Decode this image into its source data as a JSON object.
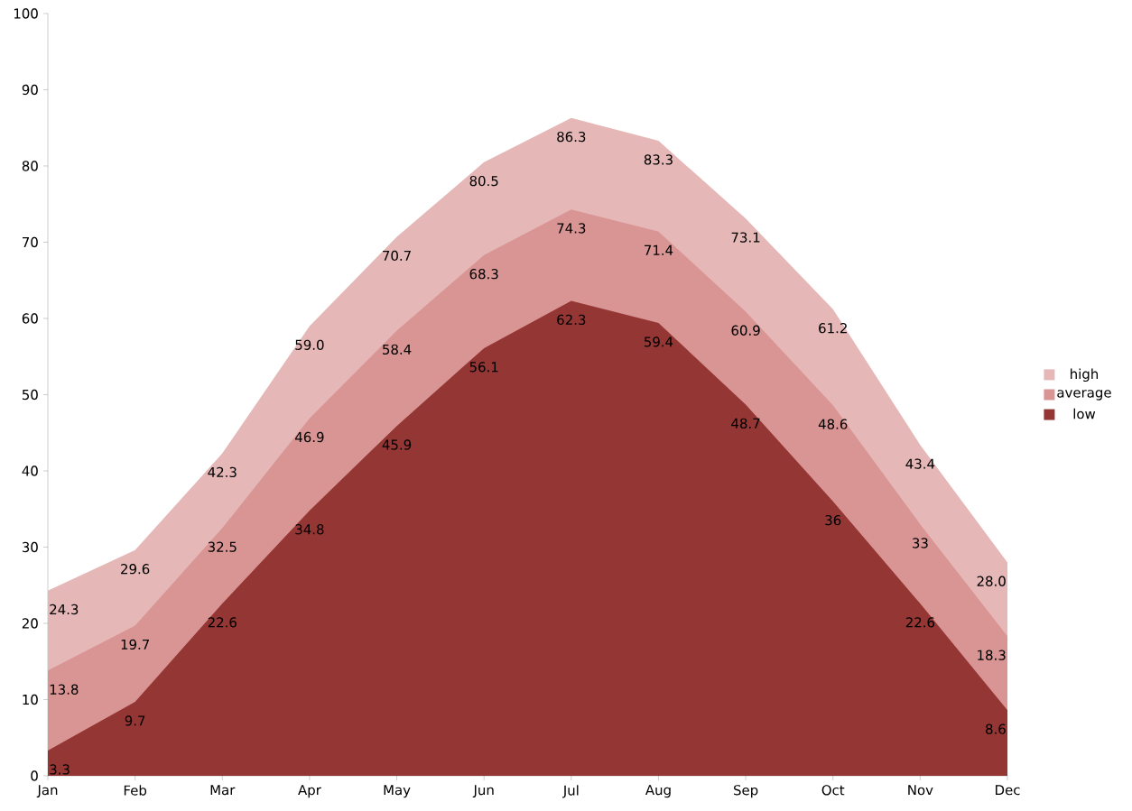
{
  "chart_data": {
    "type": "area",
    "categories": [
      "Jan",
      "Feb",
      "Mar",
      "Apr",
      "May",
      "Jun",
      "Jul",
      "Aug",
      "Sep",
      "Oct",
      "Nov",
      "Dec"
    ],
    "series": [
      {
        "name": "high",
        "color": "#e5b8b7",
        "values": [
          24.3,
          29.6,
          42.3,
          59.0,
          70.7,
          80.5,
          86.3,
          83.3,
          73.1,
          61.2,
          43.4,
          28.0
        ],
        "value_labels": [
          "24.3",
          "29.6",
          "42.3",
          "59.0",
          "70.7",
          "80.5",
          "86.3",
          "83.3",
          "73.1",
          "61.2",
          "43.4",
          "28.0"
        ]
      },
      {
        "name": "average",
        "color": "#d99594",
        "values": [
          13.8,
          19.7,
          32.5,
          46.9,
          58.4,
          68.3,
          74.3,
          71.4,
          60.9,
          48.6,
          33,
          18.3
        ],
        "value_labels": [
          "13.8",
          "19.7",
          "32.5",
          "46.9",
          "58.4",
          "68.3",
          "74.3",
          "71.4",
          "60.9",
          "48.6",
          "33",
          "18.3"
        ]
      },
      {
        "name": "low",
        "color": "#943634",
        "values": [
          3.3,
          9.7,
          22.6,
          34.8,
          45.9,
          56.1,
          62.3,
          59.4,
          48.7,
          36,
          22.6,
          8.6
        ],
        "value_labels": [
          "3.3",
          "9.7",
          "22.6",
          "34.8",
          "45.9",
          "56.1",
          "62.3",
          "59.4",
          "48.7",
          "36",
          "22.6",
          "8.6"
        ]
      }
    ],
    "ylim": [
      0,
      100
    ],
    "yticks": [
      0,
      10,
      20,
      30,
      40,
      50,
      60,
      70,
      80,
      90,
      100
    ],
    "legend": "right",
    "grid": false
  }
}
